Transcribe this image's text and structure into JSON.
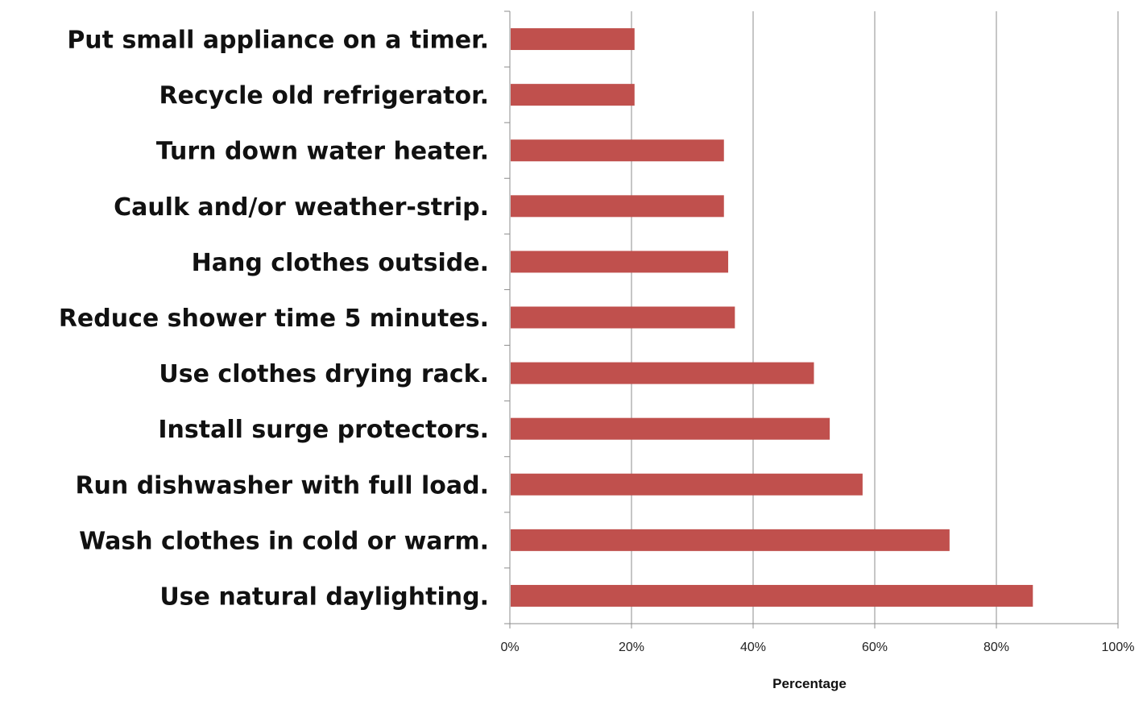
{
  "chart_data": {
    "type": "bar",
    "orientation": "horizontal",
    "categories": [
      "Put small appliance on a timer.",
      "Recycle old refrigerator.",
      "Turn down water heater.",
      "Caulk and/or weather-strip.",
      "Hang clothes outside.",
      "Reduce shower time 5 minutes.",
      "Use clothes drying rack.",
      "Install surge protectors.",
      "Run dishwasher with full load.",
      "Wash clothes in cold or warm.",
      "Use natural daylighting."
    ],
    "values": [
      0.205,
      0.205,
      0.352,
      0.352,
      0.359,
      0.37,
      0.5,
      0.526,
      0.58,
      0.723,
      0.86
    ],
    "title": "",
    "xlabel": "Percentage",
    "ylabel": "",
    "xlim": [
      0,
      1
    ],
    "xticks": [
      "0%",
      "20%",
      "40%",
      "60%",
      "80%",
      "100%"
    ],
    "grid": "vertical",
    "legend": "none",
    "bar_color": "#c0504d",
    "grid_color": "#8c8c8c",
    "axis_color": "#8c8c8c"
  }
}
